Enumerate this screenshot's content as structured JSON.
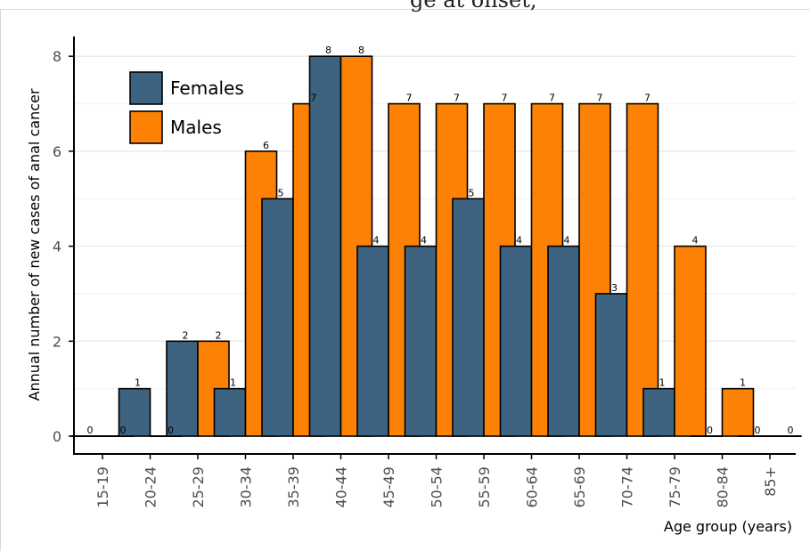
{
  "header": {
    "title_fragment": "ge at onset, "
  },
  "chart_data": {
    "type": "bar",
    "categories": [
      "15-19",
      "20-24",
      "25-29",
      "30-34",
      "35-39",
      "40-44",
      "45-49",
      "50-54",
      "55-59",
      "60-64",
      "65-69",
      "70-74",
      "75-79",
      "80-84",
      "85+"
    ],
    "series": [
      {
        "name": "Females",
        "color": "#3e6380",
        "values": [
          0,
          1,
          2,
          1,
          5,
          8,
          4,
          4,
          5,
          4,
          4,
          3,
          1,
          0,
          0
        ]
      },
      {
        "name": "Males",
        "color": "#fd8104",
        "values": [
          0,
          0,
          2,
          6,
          7,
          8,
          7,
          7,
          7,
          7,
          7,
          7,
          4,
          1,
          0
        ]
      }
    ],
    "xlabel": "Age group (years)",
    "ylabel": "Annual number of new cases of anal cancer",
    "ylim": [
      -0.4,
      8.4
    ],
    "yticks": [
      0,
      2,
      4,
      6,
      8
    ],
    "grid": true,
    "legend_position": "top-left"
  }
}
